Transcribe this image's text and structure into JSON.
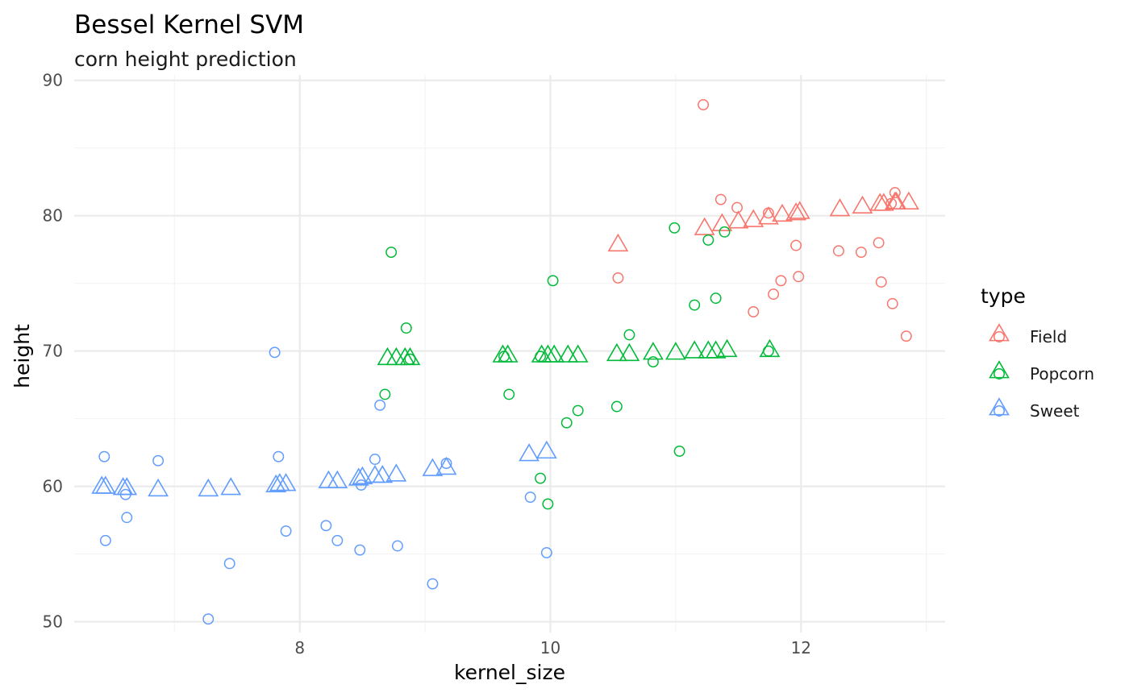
{
  "chart_data": {
    "type": "scatter",
    "title": "Bessel Kernel SVM",
    "subtitle": "corn height prediction",
    "xlabel": "kernel_size",
    "ylabel": "height",
    "xlim": [
      6.2,
      13.15
    ],
    "ylim": [
      49.2,
      90.4
    ],
    "x_major_ticks": [
      8,
      10,
      12
    ],
    "x_minor_ticks": [
      7,
      9,
      11,
      13
    ],
    "y_major_ticks": [
      50,
      60,
      70,
      80,
      90
    ],
    "y_minor_ticks": [
      55,
      65,
      75,
      85
    ],
    "x_tick_labels": [
      "8",
      "10",
      "12"
    ],
    "y_tick_labels": [
      "50",
      "60",
      "70",
      "80",
      "90"
    ],
    "grid": true,
    "legend": {
      "title": "type",
      "placement": "right",
      "entries": [
        "Field",
        "Popcorn",
        "Sweet"
      ]
    },
    "colors": {
      "Field": "#f8766d",
      "Popcorn": "#00ba38",
      "Sweet": "#619cff"
    },
    "marker_meaning": {
      "circle": "observed",
      "triangle": "predicted"
    },
    "series": [
      {
        "name": "Field",
        "observed": [
          [
            11.22,
            88.2
          ],
          [
            11.36,
            81.2
          ],
          [
            11.49,
            80.6
          ],
          [
            11.74,
            80.2
          ],
          [
            11.96,
            77.8
          ],
          [
            11.98,
            75.5
          ],
          [
            11.84,
            75.2
          ],
          [
            11.78,
            74.2
          ],
          [
            11.62,
            72.9
          ],
          [
            10.54,
            75.4
          ],
          [
            12.3,
            77.4
          ],
          [
            12.48,
            77.3
          ],
          [
            12.62,
            78.0
          ],
          [
            12.64,
            75.1
          ],
          [
            12.73,
            73.5
          ],
          [
            12.84,
            71.1
          ],
          [
            12.75,
            81.7
          ],
          [
            12.72,
            80.9
          ]
        ],
        "predicted": [
          [
            10.54,
            77.8
          ],
          [
            11.23,
            79.0
          ],
          [
            11.37,
            79.3
          ],
          [
            11.5,
            79.5
          ],
          [
            11.62,
            79.6
          ],
          [
            11.74,
            79.8
          ],
          [
            11.85,
            80.0
          ],
          [
            11.96,
            80.1
          ],
          [
            11.99,
            80.2
          ],
          [
            12.31,
            80.4
          ],
          [
            12.49,
            80.6
          ],
          [
            12.63,
            80.8
          ],
          [
            12.66,
            80.8
          ],
          [
            12.75,
            80.9
          ],
          [
            12.76,
            80.9
          ],
          [
            12.86,
            80.9
          ]
        ]
      },
      {
        "name": "Popcorn",
        "observed": [
          [
            8.73,
            77.3
          ],
          [
            8.85,
            71.7
          ],
          [
            8.88,
            69.4
          ],
          [
            8.68,
            66.8
          ],
          [
            9.63,
            69.6
          ],
          [
            9.67,
            66.8
          ],
          [
            9.92,
            69.6
          ],
          [
            10.02,
            75.2
          ],
          [
            10.13,
            64.7
          ],
          [
            10.22,
            65.6
          ],
          [
            10.53,
            65.9
          ],
          [
            10.63,
            71.2
          ],
          [
            10.82,
            69.2
          ],
          [
            10.99,
            79.1
          ],
          [
            11.15,
            73.4
          ],
          [
            11.26,
            78.2
          ],
          [
            11.32,
            73.9
          ],
          [
            11.39,
            78.8
          ],
          [
            11.03,
            62.6
          ],
          [
            9.92,
            60.6
          ],
          [
            9.98,
            58.7
          ],
          [
            11.74,
            70.0
          ]
        ],
        "predicted": [
          [
            8.7,
            69.4
          ],
          [
            8.77,
            69.4
          ],
          [
            8.84,
            69.4
          ],
          [
            8.88,
            69.4
          ],
          [
            9.62,
            69.6
          ],
          [
            9.66,
            69.6
          ],
          [
            9.93,
            69.6
          ],
          [
            9.98,
            69.6
          ],
          [
            10.03,
            69.6
          ],
          [
            10.14,
            69.6
          ],
          [
            10.22,
            69.6
          ],
          [
            10.53,
            69.7
          ],
          [
            10.63,
            69.7
          ],
          [
            10.82,
            69.8
          ],
          [
            11.0,
            69.8
          ],
          [
            11.15,
            69.9
          ],
          [
            11.26,
            69.9
          ],
          [
            11.32,
            69.9
          ],
          [
            11.41,
            70.0
          ],
          [
            11.75,
            70.0
          ]
        ]
      },
      {
        "name": "Sweet",
        "observed": [
          [
            6.44,
            62.2
          ],
          [
            6.45,
            56.0
          ],
          [
            6.61,
            59.4
          ],
          [
            6.62,
            57.7
          ],
          [
            6.87,
            61.9
          ],
          [
            7.27,
            50.2
          ],
          [
            7.44,
            54.3
          ],
          [
            7.8,
            69.9
          ],
          [
            7.83,
            62.2
          ],
          [
            7.89,
            56.7
          ],
          [
            8.21,
            57.1
          ],
          [
            8.3,
            56.0
          ],
          [
            8.48,
            55.3
          ],
          [
            8.49,
            60.1
          ],
          [
            8.6,
            62.0
          ],
          [
            8.64,
            66.0
          ],
          [
            8.78,
            55.6
          ],
          [
            9.06,
            52.8
          ],
          [
            9.17,
            61.7
          ],
          [
            9.84,
            59.2
          ],
          [
            9.97,
            55.1
          ]
        ],
        "predicted": [
          [
            6.42,
            59.9
          ],
          [
            6.45,
            59.9
          ],
          [
            6.59,
            59.8
          ],
          [
            6.62,
            59.8
          ],
          [
            6.87,
            59.7
          ],
          [
            7.27,
            59.7
          ],
          [
            7.45,
            59.8
          ],
          [
            7.81,
            60.0
          ],
          [
            7.84,
            60.1
          ],
          [
            7.89,
            60.1
          ],
          [
            8.23,
            60.3
          ],
          [
            8.3,
            60.3
          ],
          [
            8.47,
            60.5
          ],
          [
            8.5,
            60.6
          ],
          [
            8.6,
            60.7
          ],
          [
            8.66,
            60.7
          ],
          [
            8.77,
            60.8
          ],
          [
            9.06,
            61.2
          ],
          [
            9.17,
            61.3
          ],
          [
            9.83,
            62.3
          ],
          [
            9.97,
            62.5
          ]
        ]
      }
    ]
  }
}
